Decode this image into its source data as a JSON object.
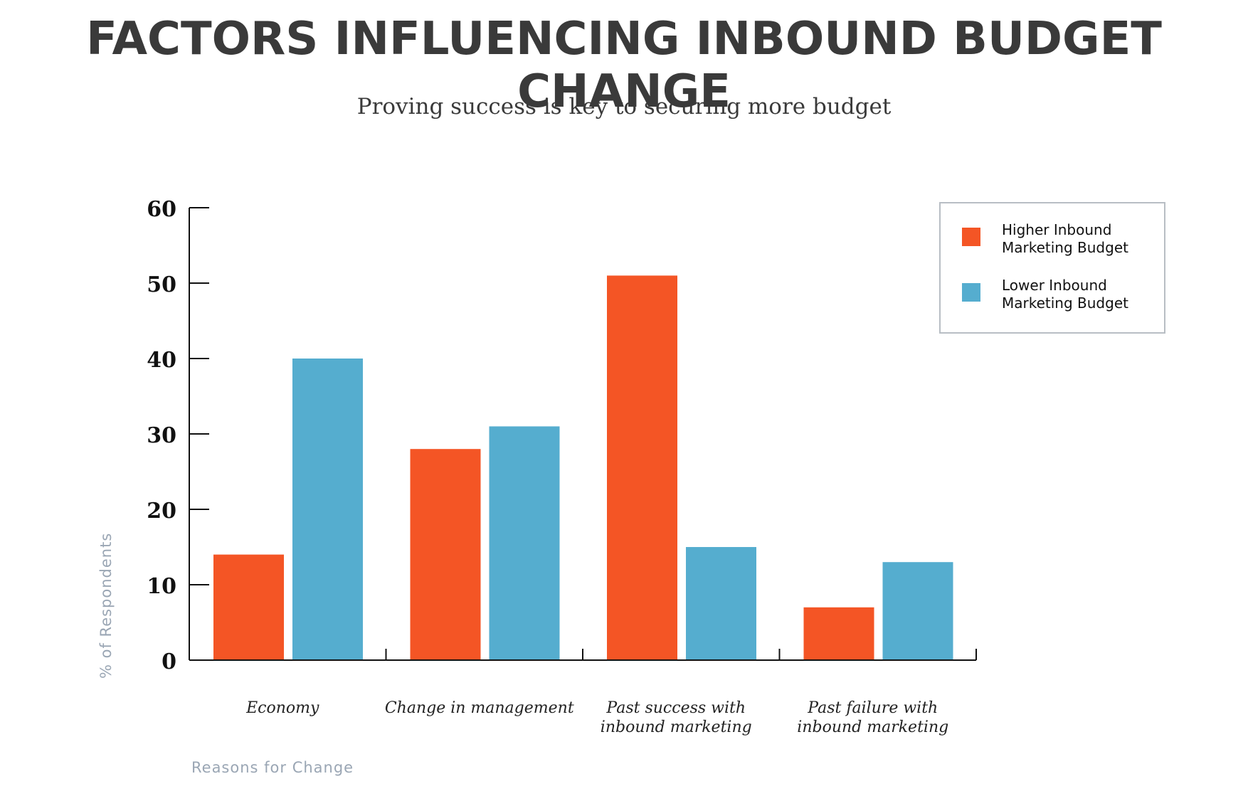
{
  "chart_data": {
    "type": "bar",
    "title": "FACTORS INFLUENCING INBOUND BUDGET CHANGE",
    "subtitle": "Proving success is key to securing more budget",
    "xlabel": "Reasons for Change",
    "ylabel": "% of Respondents",
    "categories": [
      [
        "Economy"
      ],
      [
        "Change in management"
      ],
      [
        "Past success with",
        "inbound marketing"
      ],
      [
        "Past failure with",
        "inbound marketing"
      ]
    ],
    "series": [
      {
        "name": "Higher Inbound Marketing Budget",
        "legend_lines": [
          "Higher Inbound",
          "Marketing Budget"
        ],
        "color": "#f45525",
        "values": [
          14,
          28,
          51,
          7
        ]
      },
      {
        "name": "Lower Inbound Marketing Budget",
        "legend_lines": [
          "Lower Inbound",
          "Marketing Budget"
        ],
        "color": "#55adcf",
        "values": [
          40,
          31,
          15,
          13
        ]
      }
    ],
    "ylim": [
      0,
      60
    ],
    "yticks": [
      "0",
      "10",
      "20",
      "30",
      "40",
      "50",
      "60"
    ],
    "grid": false,
    "legend_position": "top-right"
  }
}
